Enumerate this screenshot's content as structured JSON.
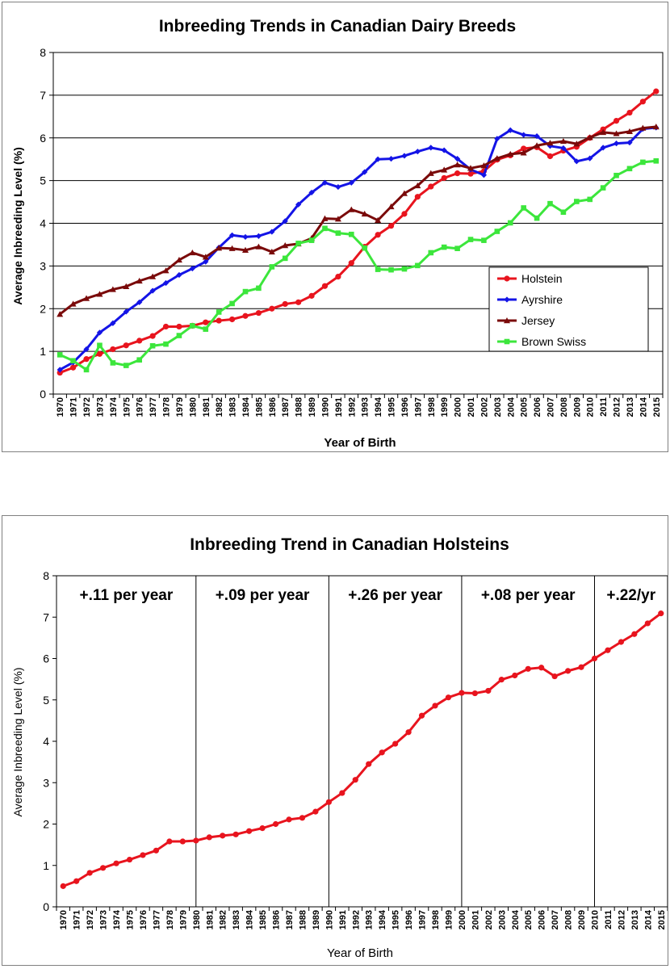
{
  "colors": {
    "holstein": "#e8141e",
    "ayrshire": "#1414e6",
    "jersey": "#7a0a0a",
    "brown_swiss": "#3ce63c"
  },
  "chart_data": [
    {
      "type": "line",
      "title": "Inbreeding Trends in Canadian Dairy Breeds",
      "xlabel": "Year of Birth",
      "ylabel": "Average Inbreeding Level (%)",
      "ylim": [
        0,
        8
      ],
      "yticks": [
        "0",
        "1",
        "2",
        "3",
        "4",
        "5",
        "6",
        "7",
        "8"
      ],
      "grid": "horizontal",
      "legend_position": "lower-right",
      "categories": [
        "1970",
        "1971",
        "1972",
        "1973",
        "1974",
        "1975",
        "1976",
        "1977",
        "1978",
        "1979",
        "1980",
        "1981",
        "1982",
        "1983",
        "1984",
        "1985",
        "1986",
        "1987",
        "1988",
        "1989",
        "1990",
        "1991",
        "1992",
        "1993",
        "1994",
        "1995",
        "1996",
        "1997",
        "1998",
        "1999",
        "2000",
        "2001",
        "2002",
        "2003",
        "2004",
        "2005",
        "2006",
        "2007",
        "2008",
        "2009",
        "2010",
        "2011",
        "2012",
        "2013",
        "2014",
        "2015"
      ],
      "series": [
        {
          "name": "Holstein",
          "marker": "circle",
          "values": [
            0.5,
            0.62,
            0.82,
            0.94,
            1.05,
            1.14,
            1.25,
            1.36,
            1.58,
            1.58,
            1.6,
            1.68,
            1.72,
            1.75,
            1.83,
            1.9,
            2.0,
            2.11,
            2.15,
            2.3,
            2.53,
            2.75,
            3.07,
            3.45,
            3.73,
            3.94,
            4.22,
            4.62,
            4.86,
            5.06,
            5.17,
            5.16,
            5.22,
            5.49,
            5.59,
            5.75,
            5.78,
            5.57,
            5.7,
            5.79,
            6.0,
            6.2,
            6.4,
            6.59,
            6.85,
            7.09
          ]
        },
        {
          "name": "Ayrshire",
          "marker": "diamond",
          "values": [
            0.57,
            0.74,
            1.05,
            1.44,
            1.66,
            1.93,
            2.15,
            2.42,
            2.6,
            2.79,
            2.94,
            3.1,
            3.43,
            3.72,
            3.68,
            3.7,
            3.8,
            4.05,
            4.44,
            4.72,
            4.95,
            4.85,
            4.95,
            5.2,
            5.5,
            5.51,
            5.58,
            5.68,
            5.77,
            5.71,
            5.51,
            5.26,
            5.13,
            5.98,
            6.18,
            6.07,
            6.04,
            5.81,
            5.76,
            5.45,
            5.52,
            5.77,
            5.87,
            5.89,
            6.21,
            6.24
          ]
        },
        {
          "name": "Jersey",
          "marker": "triangle",
          "values": [
            1.87,
            2.11,
            2.24,
            2.34,
            2.45,
            2.52,
            2.65,
            2.75,
            2.89,
            3.14,
            3.31,
            3.21,
            3.42,
            3.41,
            3.37,
            3.45,
            3.33,
            3.48,
            3.52,
            3.65,
            4.11,
            4.1,
            4.32,
            4.22,
            4.07,
            4.39,
            4.7,
            4.88,
            5.17,
            5.25,
            5.37,
            5.29,
            5.35,
            5.52,
            5.62,
            5.65,
            5.82,
            5.88,
            5.92,
            5.86,
            6.01,
            6.13,
            6.1,
            6.15,
            6.23,
            6.26
          ]
        },
        {
          "name": "Brown Swiss",
          "marker": "square",
          "values": [
            0.92,
            0.78,
            0.57,
            1.14,
            0.73,
            0.67,
            0.8,
            1.13,
            1.17,
            1.37,
            1.6,
            1.52,
            1.92,
            2.12,
            2.4,
            2.48,
            2.98,
            3.18,
            3.53,
            3.6,
            3.88,
            3.77,
            3.74,
            3.42,
            2.92,
            2.91,
            2.93,
            3.01,
            3.31,
            3.44,
            3.41,
            3.62,
            3.6,
            3.81,
            4.01,
            4.36,
            4.12,
            4.46,
            4.26,
            4.51,
            4.56,
            4.83,
            5.12,
            5.28,
            5.43,
            5.46
          ]
        }
      ]
    },
    {
      "type": "line",
      "title": "Inbreeding Trend in Canadian Holsteins",
      "xlabel": "Year of Birth",
      "ylabel": "Average Inbreeding Level (%)",
      "ylim": [
        0,
        8
      ],
      "yticks": [
        "0",
        "1",
        "2",
        "3",
        "4",
        "5",
        "6",
        "7",
        "8"
      ],
      "grid": "vertical at 1980, 1990, 2000, 2010",
      "categories": [
        "1970",
        "1971",
        "1972",
        "1973",
        "1974",
        "1975",
        "1976",
        "1977",
        "1978",
        "1979",
        "1980",
        "1981",
        "1982",
        "1983",
        "1984",
        "1985",
        "1986",
        "1987",
        "1988",
        "1989",
        "1990",
        "1991",
        "1992",
        "1993",
        "1994",
        "1995",
        "1996",
        "1997",
        "1998",
        "1999",
        "2000",
        "2001",
        "2002",
        "2003",
        "2004",
        "2005",
        "2006",
        "2007",
        "2008",
        "2009",
        "2010",
        "2011",
        "2012",
        "2013",
        "2014",
        "2015"
      ],
      "dividers": [
        "1980",
        "1990",
        "2000",
        "2010"
      ],
      "annotations": [
        {
          "text": "+.11 per year",
          "period": [
            "1970",
            "1980"
          ]
        },
        {
          "text": "+.09 per year",
          "period": [
            "1980",
            "1990"
          ]
        },
        {
          "text": "+.26 per year",
          "period": [
            "1990",
            "2000"
          ]
        },
        {
          "text": "+.08 per year",
          "period": [
            "2000",
            "2010"
          ]
        },
        {
          "text": "+.22/yr",
          "period": [
            "2010",
            "2015"
          ]
        }
      ],
      "series": [
        {
          "name": "Holstein",
          "marker": "circle",
          "values": [
            0.5,
            0.62,
            0.82,
            0.94,
            1.05,
            1.14,
            1.25,
            1.36,
            1.58,
            1.58,
            1.6,
            1.68,
            1.72,
            1.75,
            1.83,
            1.9,
            2.0,
            2.11,
            2.15,
            2.3,
            2.53,
            2.75,
            3.07,
            3.45,
            3.73,
            3.94,
            4.22,
            4.62,
            4.86,
            5.06,
            5.17,
            5.16,
            5.22,
            5.49,
            5.59,
            5.75,
            5.78,
            5.57,
            5.7,
            5.79,
            6.0,
            6.2,
            6.4,
            6.59,
            6.85,
            7.09
          ]
        }
      ]
    }
  ]
}
